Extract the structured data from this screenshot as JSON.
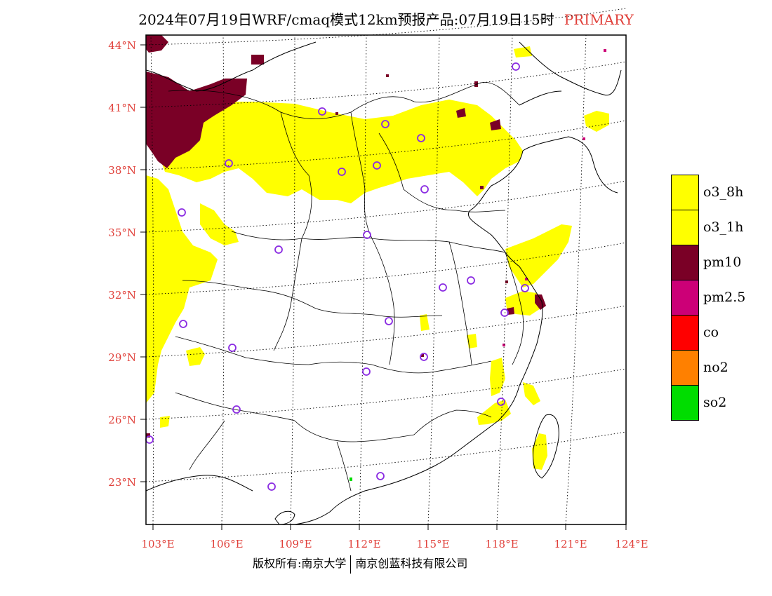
{
  "title": {
    "text": "2024年07月19日WRF/cmaq模式12km预报产品:07月19日15时",
    "tag": "PRIMARY"
  },
  "colors": {
    "title_tag": "#e0403a",
    "axis_labels": "#e0403a",
    "o3_8h": "#ffff00",
    "o3_1h": "#ffff00",
    "pm10": "#7a0026",
    "pm25": "#cc0077",
    "co": "#ff0000",
    "no2": "#ff8000",
    "so2": "#00dd00",
    "station_marker": "#8a2be2"
  },
  "axes": {
    "lat_labels": [
      "44°N",
      "41°N",
      "38°N",
      "35°N",
      "32°N",
      "29°N",
      "26°N",
      "23°N"
    ],
    "lon_labels": [
      "103°E",
      "106°E",
      "109°E",
      "112°E",
      "115°E",
      "118°E",
      "121°E",
      "124°E"
    ]
  },
  "legend": [
    {
      "label": "o3_8h",
      "color": "#ffff00"
    },
    {
      "label": "o3_1h",
      "color": "#ffff00"
    },
    {
      "label": "pm10",
      "color": "#7a0026"
    },
    {
      "label": "pm2.5",
      "color": "#cc0077"
    },
    {
      "label": "co",
      "color": "#ff0000"
    },
    {
      "label": "no2",
      "color": "#ff8000"
    },
    {
      "label": "so2",
      "color": "#00dd00"
    }
  ],
  "footer": {
    "left": "版权所有:南京大学",
    "right": "南京创蓝科技有限公司"
  }
}
